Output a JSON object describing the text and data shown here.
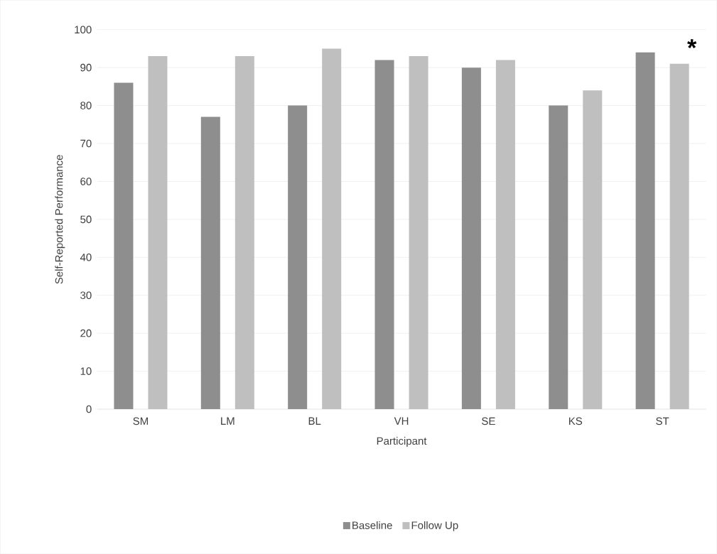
{
  "chart_data": {
    "type": "bar",
    "xlabel": "Participant",
    "ylabel": "Self-Reported Performance",
    "categories": [
      "SM",
      "LM",
      "BL",
      "VH",
      "SE",
      "KS",
      "ST"
    ],
    "series": [
      {
        "name": "Baseline",
        "color": "#8e8e8e",
        "values": [
          86,
          77,
          80,
          92,
          90,
          80,
          94
        ]
      },
      {
        "name": "Follow Up",
        "color": "#bfbfbf",
        "values": [
          93,
          93,
          95,
          93,
          92,
          84,
          91
        ]
      }
    ],
    "ylim": [
      0,
      100
    ],
    "yticks": [
      0,
      10,
      20,
      30,
      40,
      50,
      60,
      70,
      80,
      90,
      100
    ],
    "grid": "y",
    "legend": "bottom",
    "annotations": [
      "*"
    ]
  }
}
